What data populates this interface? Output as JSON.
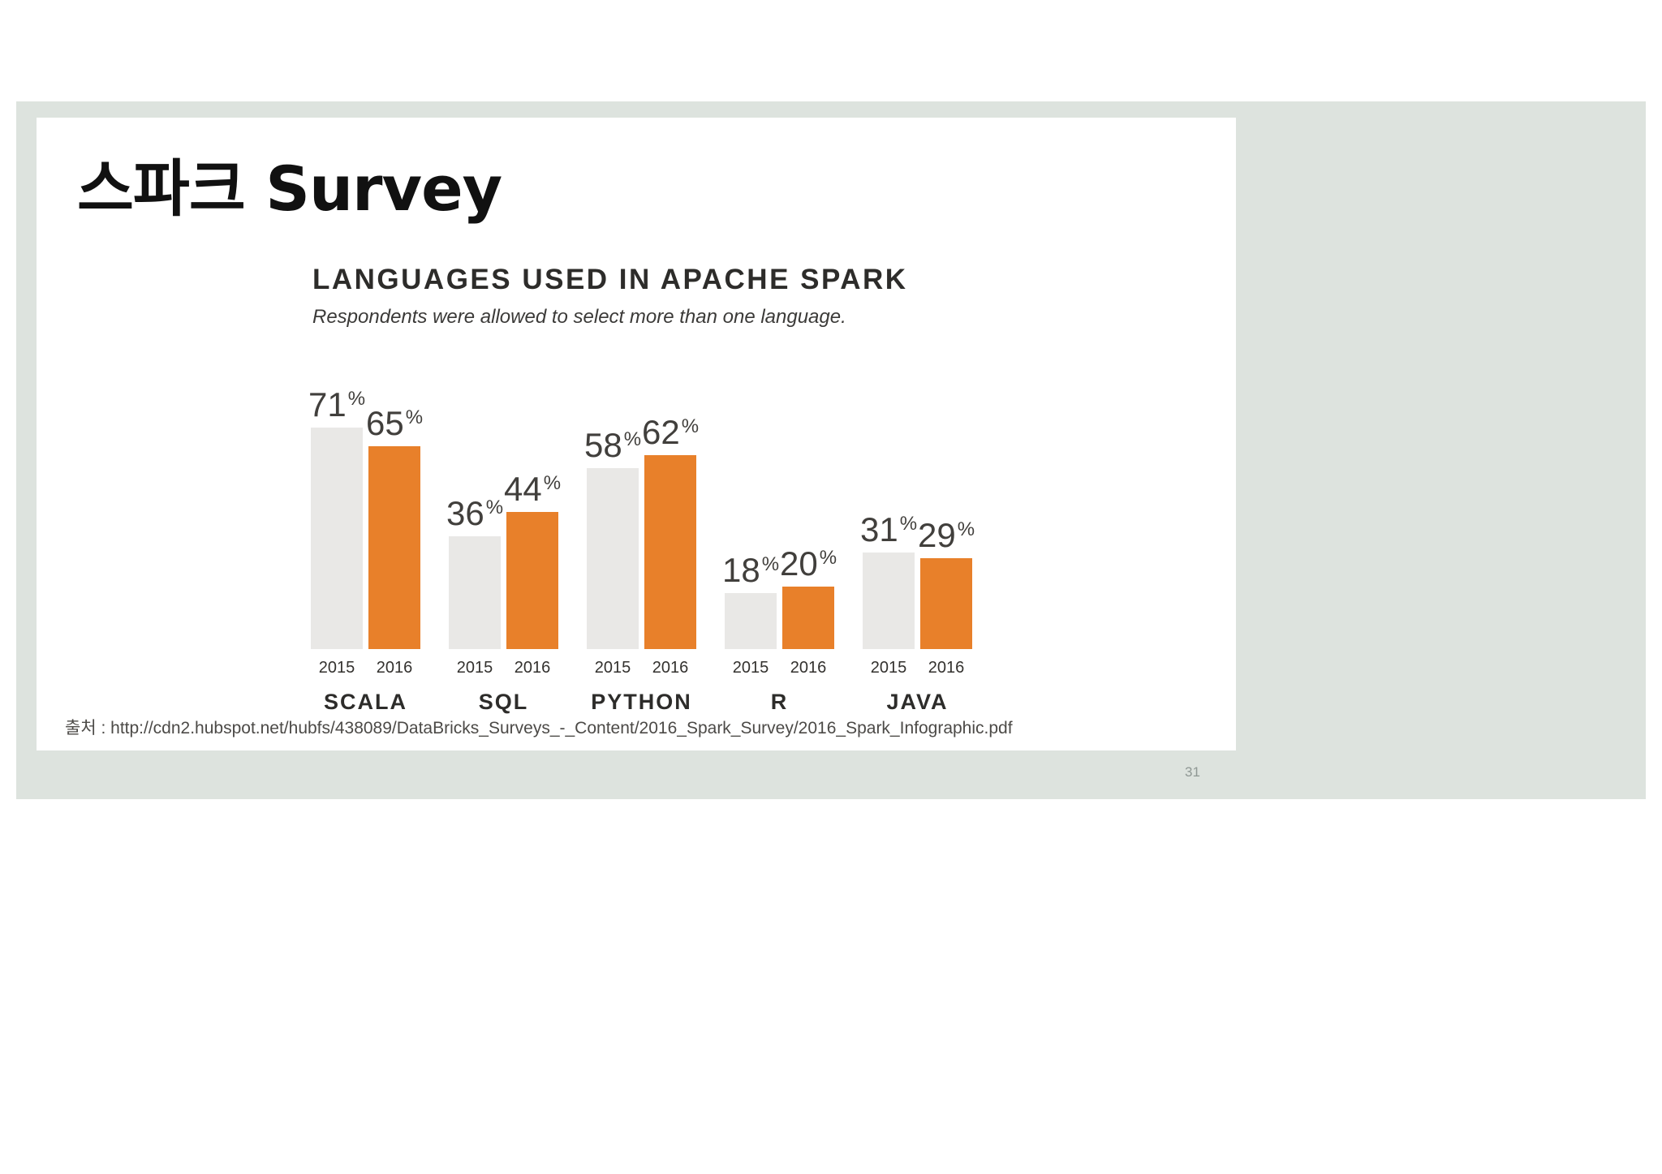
{
  "slide": {
    "title": "스파크 Survey",
    "source": "출처 : http://cdn2.hubspot.net/hubfs/438089/DataBricks_Surveys_-_Content/2016_Spark_Survey/2016_Spark_Infographic.pdf",
    "page_number": "31"
  },
  "chart_data": {
    "type": "bar",
    "title": "LANGUAGES USED IN APACHE SPARK",
    "subtitle": "Respondents were allowed to select more than one language.",
    "categories": [
      "SCALA",
      "SQL",
      "PYTHON",
      "R",
      "JAVA"
    ],
    "series": [
      {
        "name": "2015",
        "color": "#e9e8e6",
        "values": [
          71,
          36,
          58,
          18,
          31
        ]
      },
      {
        "name": "2016",
        "color": "#e8802a",
        "values": [
          65,
          44,
          62,
          20,
          29
        ]
      }
    ],
    "unit": "%",
    "ylim": [
      0,
      80
    ],
    "grid": false,
    "legend_position": "none",
    "value_labels": "above-bars",
    "x_tick_labels_per_bar": [
      "2015",
      "2016"
    ]
  },
  "colors": {
    "frame_background": "#dde3de",
    "panel_background": "#ffffff",
    "bar_2015": "#e9e8e6",
    "bar_2016": "#e8802a",
    "text_dark": "#2d2c2a"
  }
}
